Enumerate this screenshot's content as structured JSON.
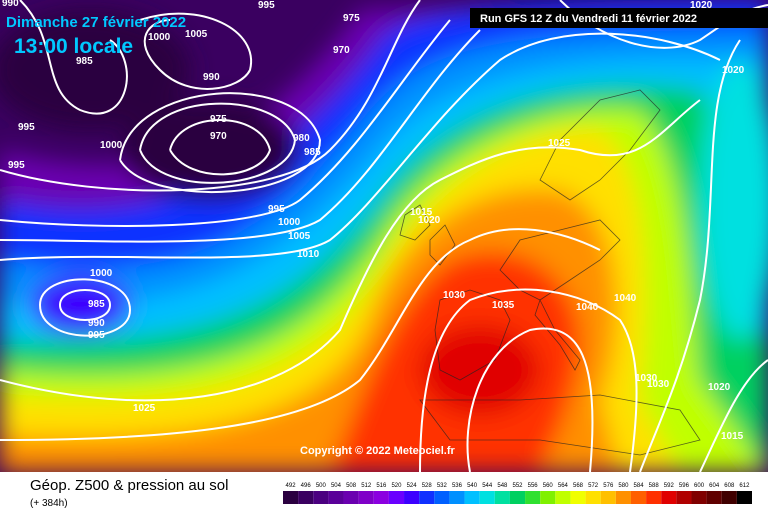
{
  "header": {
    "title": "Dimanche 27 février 2022",
    "time": "13:00 locale",
    "run": "Run GFS 12 Z du Vendredi 11 février 2022"
  },
  "copyright": "Copyright © 2022 Meteociel.fr",
  "footer": {
    "title": "Géop. Z500 & pression au sol",
    "lead": "(+ 384h)"
  },
  "legend": {
    "ticks": [
      492,
      496,
      500,
      504,
      508,
      512,
      516,
      520,
      524,
      528,
      532,
      536,
      540,
      544,
      548,
      552,
      556,
      560,
      564,
      568,
      572,
      576,
      580,
      584,
      588,
      592,
      596,
      600,
      604,
      608,
      612
    ],
    "colors": [
      "#2a0040",
      "#3a0060",
      "#4b0080",
      "#5a0099",
      "#6a00b0",
      "#7f00c8",
      "#8b00e0",
      "#6a00ff",
      "#3c00ff",
      "#1030ff",
      "#0060ff",
      "#0090ff",
      "#00c0ff",
      "#00e0e0",
      "#00e0a0",
      "#00d060",
      "#30e030",
      "#80f000",
      "#c0ff00",
      "#f0ff00",
      "#ffe000",
      "#ffc000",
      "#ff9000",
      "#ff6000",
      "#ff3000",
      "#e00000",
      "#b00000",
      "#800000",
      "#600000",
      "#400000",
      "#000000"
    ]
  },
  "isobar_labels": [
    990,
    995,
    1000,
    1005,
    985,
    975,
    970,
    990,
    995,
    1000,
    975,
    970,
    980,
    985,
    995,
    995,
    1000,
    1005,
    1010,
    1000,
    985,
    990,
    995,
    1025,
    1015,
    1020,
    1025,
    1030,
    1035,
    1040,
    1040,
    1030,
    1030,
    1020,
    1015,
    1020,
    1020
  ]
}
